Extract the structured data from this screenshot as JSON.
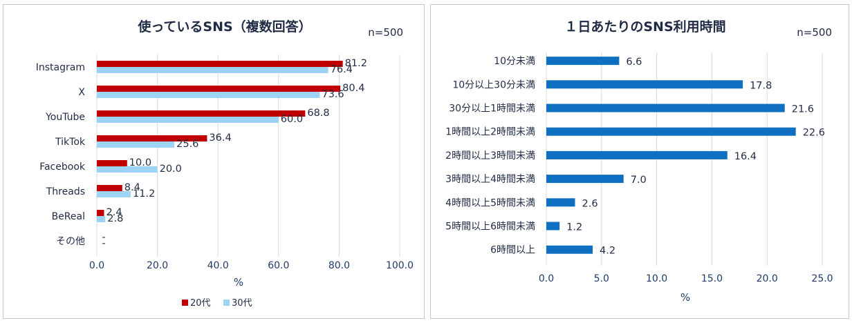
{
  "chart_data": [
    {
      "type": "bar",
      "orientation": "horizontal",
      "title": "使っているSNS（複数回答）",
      "n_label": "n=500",
      "categories": [
        "Instagram",
        "X",
        "YouTube",
        "TikTok",
        "Facebook",
        "Threads",
        "BeReal",
        "その他"
      ],
      "series": [
        {
          "name": "20代",
          "color": "#c00000",
          "values": [
            81.2,
            80.4,
            68.8,
            36.4,
            10.0,
            8.4,
            2.4,
            null
          ],
          "labels": [
            "81.2",
            "80.4",
            "68.8",
            "36.4",
            "10.0",
            "8.4",
            "2.4",
            "-"
          ]
        },
        {
          "name": "30代",
          "color": "#9dd3f7",
          "values": [
            76.4,
            73.6,
            60.0,
            25.6,
            20.0,
            11.2,
            2.8,
            null
          ],
          "labels": [
            "76.4",
            "73.6",
            "60.0",
            "25.6",
            "20.0",
            "11.2",
            "2.8",
            "-"
          ]
        }
      ],
      "xlabel": "%",
      "xlim": [
        0,
        100
      ],
      "xticks": [
        "0.0",
        "20.0",
        "40.0",
        "60.0",
        "80.0",
        "100.0"
      ],
      "xtick_values": [
        0,
        20,
        40,
        60,
        80,
        100
      ],
      "grid": "vertical",
      "legend": "bottom"
    },
    {
      "type": "bar",
      "orientation": "horizontal",
      "title": "１日あたりのSNS利用時間",
      "n_label": "n=500",
      "categories": [
        "10分未満",
        "10分以上30分未満",
        "30分以上1時間未満",
        "1時間以上2時間未満",
        "2時間以上3時間未満",
        "3時間以上4時間未満",
        "4時間以上5時間未満",
        "5時間以上6時間未満",
        "6時間以上"
      ],
      "series": [
        {
          "name": "利用時間",
          "color": "#0f6fc0",
          "values": [
            6.6,
            17.8,
            21.6,
            22.6,
            16.4,
            7.0,
            2.6,
            1.2,
            4.2
          ],
          "labels": [
            "6.6",
            "17.8",
            "21.6",
            "22.6",
            "16.4",
            "7.0",
            "2.6",
            "1.2",
            "4.2"
          ]
        }
      ],
      "xlabel": "%",
      "xlim": [
        0,
        25
      ],
      "xticks": [
        "0.0",
        "5.0",
        "10.0",
        "15.0",
        "20.0",
        "25.0"
      ],
      "xtick_values": [
        0,
        5,
        10,
        15,
        20,
        25
      ],
      "grid": "vertical",
      "legend": "none"
    }
  ]
}
